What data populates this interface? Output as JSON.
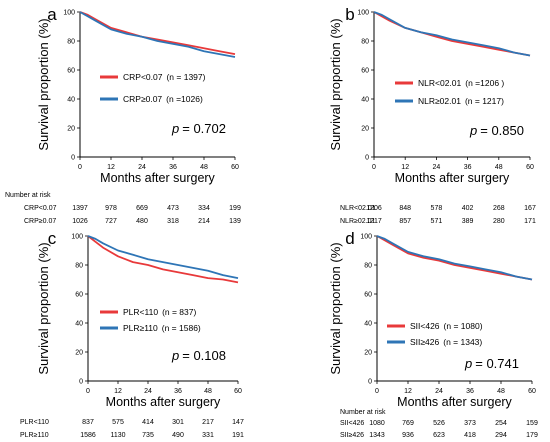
{
  "chart_data": [
    {
      "type": "line",
      "panel": "a",
      "xlabel": "Months after surgery",
      "ylabel": "Survival proportion (%)",
      "xlim": [
        0,
        60
      ],
      "ylim": [
        0,
        100
      ],
      "xticks": [
        0,
        12,
        24,
        36,
        48,
        60
      ],
      "yticks": [
        0,
        20,
        40,
        60,
        80,
        100
      ],
      "grid": false,
      "legend_position": "middle-left",
      "p_prefix": "p",
      "p_value": "= 0.702",
      "x": [
        0,
        3,
        6,
        12,
        18,
        24,
        30,
        36,
        42,
        48,
        54,
        60
      ],
      "series": [
        {
          "name": "CRP<0.07",
          "n_label": "(n = 1397)",
          "color": "#e8393a",
          "values": [
            100,
            98,
            95,
            89,
            86,
            83,
            81,
            79,
            77,
            75,
            73,
            71
          ]
        },
        {
          "name": "CRP≥0.07",
          "n_label": "(n =1026)",
          "color": "#2e75b6",
          "values": [
            100,
            97,
            94,
            88,
            85,
            83,
            80,
            78,
            76,
            73,
            71,
            69
          ]
        }
      ],
      "risk_table": {
        "heading": "Number at risk",
        "rows": [
          {
            "label": "CRP<0.07",
            "values": [
              "1397",
              "978",
              "669",
              "473",
              "334",
              "199"
            ]
          },
          {
            "label": "CRP≥0.07",
            "values": [
              "1026",
              "727",
              "480",
              "318",
              "214",
              "139"
            ]
          }
        ]
      }
    },
    {
      "type": "line",
      "panel": "b",
      "xlabel": "Months after surgery",
      "ylabel": "Survival proportion (%)",
      "xlim": [
        0,
        60
      ],
      "ylim": [
        0,
        100
      ],
      "xticks": [
        0,
        12,
        24,
        36,
        48,
        60
      ],
      "yticks": [
        0,
        20,
        40,
        60,
        80,
        100
      ],
      "grid": false,
      "legend_position": "middle-left",
      "p_prefix": "p",
      "p_value": "= 0.850",
      "x": [
        0,
        3,
        6,
        12,
        18,
        24,
        30,
        36,
        42,
        48,
        54,
        60
      ],
      "series": [
        {
          "name": "NLR<02.01",
          "n_label": "(n =1206 )",
          "color": "#e8393a",
          "values": [
            100,
            97,
            94,
            89,
            86,
            83,
            80,
            78,
            76,
            74,
            72,
            70
          ]
        },
        {
          "name": "NLR≥02.01",
          "n_label": "(n = 1217)",
          "color": "#2e75b6",
          "values": [
            100,
            98,
            95,
            89,
            86,
            84,
            81,
            79,
            77,
            75,
            72,
            70
          ]
        }
      ],
      "risk_table": {
        "heading": "",
        "rows": [
          {
            "label": "NLR<02.01",
            "values": [
              "1206",
              "848",
              "578",
              "402",
              "268",
              "167"
            ]
          },
          {
            "label": "NLR≥02.01",
            "values": [
              "1217",
              "857",
              "571",
              "389",
              "280",
              "171"
            ]
          }
        ]
      }
    },
    {
      "type": "line",
      "panel": "c",
      "xlabel": "Months after surgery",
      "ylabel": "Survival proportion (%)",
      "xlim": [
        0,
        60
      ],
      "ylim": [
        0,
        100
      ],
      "xticks": [
        0,
        12,
        24,
        36,
        48,
        60
      ],
      "yticks": [
        0,
        20,
        40,
        60,
        80,
        100
      ],
      "grid": false,
      "legend_position": "middle-center",
      "p_prefix": "p",
      "p_value": "= 0.108",
      "x": [
        0,
        3,
        6,
        12,
        18,
        24,
        30,
        36,
        42,
        48,
        54,
        60
      ],
      "series": [
        {
          "name": "PLR<110",
          "n_label": "(n = 837)",
          "color": "#e8393a",
          "values": [
            100,
            96,
            92,
            86,
            82,
            80,
            77,
            75,
            73,
            71,
            70,
            68
          ]
        },
        {
          "name": "PLR≥110",
          "n_label": "(n = 1586)",
          "color": "#2e75b6",
          "values": [
            100,
            98,
            95,
            90,
            87,
            84,
            82,
            80,
            78,
            76,
            73,
            71
          ]
        }
      ],
      "risk_table": {
        "heading": "",
        "rows": [
          {
            "label": "PLR<110",
            "values": [
              "837",
              "575",
              "414",
              "301",
              "217",
              "147"
            ]
          },
          {
            "label": "PLR≥110",
            "values": [
              "1586",
              "1130",
              "735",
              "490",
              "331",
              "191"
            ]
          }
        ]
      }
    },
    {
      "type": "line",
      "panel": "d",
      "xlabel": "Months after surgery",
      "ylabel": "Survival proportion (%)",
      "xlim": [
        0,
        60
      ],
      "ylim": [
        0,
        100
      ],
      "xticks": [
        0,
        12,
        24,
        36,
        48,
        60
      ],
      "yticks": [
        0,
        20,
        40,
        60,
        80,
        100
      ],
      "grid": false,
      "legend_position": "middle-left",
      "p_prefix": "p",
      "p_value": "= 0.741",
      "x": [
        0,
        3,
        6,
        12,
        18,
        24,
        30,
        36,
        42,
        48,
        54,
        60
      ],
      "series": [
        {
          "name": "SII<426",
          "n_label": "(n = 1080)",
          "color": "#e8393a",
          "values": [
            100,
            97,
            94,
            88,
            85,
            83,
            80,
            78,
            76,
            74,
            72,
            70
          ]
        },
        {
          "name": "SII≥426",
          "n_label": "(n = 1343)",
          "color": "#2e75b6",
          "values": [
            100,
            98,
            95,
            89,
            86,
            84,
            81,
            79,
            77,
            75,
            72,
            70
          ]
        }
      ],
      "risk_table": {
        "heading": "Number at risk",
        "rows": [
          {
            "label": "SII<426",
            "values": [
              "1080",
              "769",
              "526",
              "373",
              "254",
              "159"
            ]
          },
          {
            "label": "SII≥426",
            "values": [
              "1343",
              "936",
              "623",
              "418",
              "294",
              "179"
            ]
          }
        ]
      }
    }
  ]
}
